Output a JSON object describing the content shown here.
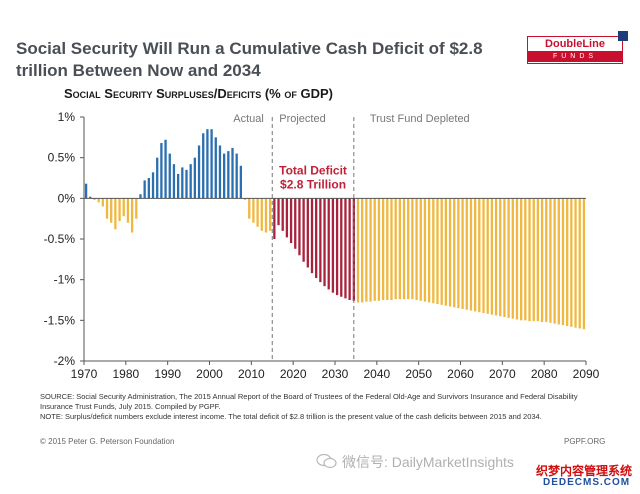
{
  "title": "Social Security Will Run a Cumulative Cash Deficit of $2.8 trillion Between Now and 2034",
  "logo": {
    "top": "DoubleLine",
    "bottom": "FUNDS"
  },
  "subtitle": "Social Security Surpluses/Deficits (% of GDP)",
  "source": "SOURCE: Social Security Administration, The 2015 Annual Report of the Board of Trustees of the Federal Old-Age and Survivors Insurance and Federal Disability Insurance Trust Funds, July 2015. Compiled by PGPF.",
  "note": "NOTE: Surplus/deficit numbers exclude interest income. The total deficit of $2.8 trillion is the present value of the cash deficits between 2015 and 2034.",
  "footer_left": "© 2015 Peter G. Peterson Foundation",
  "footer_right": "PGPF.ORG",
  "watermark": "微信号: DailyMarketInsights",
  "brand_line1": "织梦内容管理系统",
  "brand_line2": "DEDECMS.COM",
  "colors": {
    "surplus": "#2a6fb0",
    "deficit": "#f0b840",
    "projected_deficit": "#a8223d",
    "annotation": "#c0203a"
  },
  "chart_data": {
    "type": "bar",
    "xlim": [
      1970,
      2090
    ],
    "ylim": [
      -2,
      1
    ],
    "yticks": [
      "1%",
      "0.5%",
      "0%",
      "-0.5%",
      "-1%",
      "-1.5%",
      "-2%"
    ],
    "ytick_values": [
      1,
      0.5,
      0,
      -0.5,
      -1,
      -1.5,
      -2
    ],
    "xticks": [
      "1970",
      "1980",
      "1990",
      "2000",
      "2010",
      "2020",
      "2030",
      "2040",
      "2050",
      "2060",
      "2070",
      "2080",
      "2090"
    ],
    "xtick_values": [
      1970,
      1980,
      1990,
      2000,
      2010,
      2020,
      2030,
      2040,
      2050,
      2060,
      2070,
      2080,
      2090
    ],
    "region_labels": [
      "Actual",
      "Projected",
      "Trust Fund Depleted"
    ],
    "dividers": [
      2015,
      2034.5
    ],
    "annotation": [
      "Total Deficit",
      "$2.8 Trillion"
    ],
    "grid": false,
    "years": [
      1970,
      1971,
      1972,
      1973,
      1974,
      1975,
      1976,
      1977,
      1978,
      1979,
      1980,
      1981,
      1982,
      1983,
      1984,
      1985,
      1986,
      1987,
      1988,
      1989,
      1990,
      1991,
      1992,
      1993,
      1994,
      1995,
      1996,
      1997,
      1998,
      1999,
      2000,
      2001,
      2002,
      2003,
      2004,
      2005,
      2006,
      2007,
      2008,
      2009,
      2010,
      2011,
      2012,
      2013,
      2014,
      2015,
      2016,
      2017,
      2018,
      2019,
      2020,
      2021,
      2022,
      2023,
      2024,
      2025,
      2026,
      2027,
      2028,
      2029,
      2030,
      2031,
      2032,
      2033,
      2034,
      2035,
      2036,
      2037,
      2038,
      2039,
      2040,
      2041,
      2042,
      2043,
      2044,
      2045,
      2046,
      2047,
      2048,
      2049,
      2050,
      2051,
      2052,
      2053,
      2054,
      2055,
      2056,
      2057,
      2058,
      2059,
      2060,
      2061,
      2062,
      2063,
      2064,
      2065,
      2066,
      2067,
      2068,
      2069,
      2070,
      2071,
      2072,
      2073,
      2074,
      2075,
      2076,
      2077,
      2078,
      2079,
      2080,
      2081,
      2082,
      2083,
      2084,
      2085,
      2086,
      2087,
      2088,
      2089
    ],
    "values": [
      0.18,
      0.02,
      -0.02,
      -0.05,
      -0.1,
      -0.25,
      -0.3,
      -0.38,
      -0.28,
      -0.22,
      -0.3,
      -0.42,
      -0.25,
      0.05,
      0.22,
      0.25,
      0.32,
      0.5,
      0.68,
      0.72,
      0.55,
      0.42,
      0.3,
      0.38,
      0.35,
      0.42,
      0.5,
      0.65,
      0.8,
      0.85,
      0.85,
      0.75,
      0.65,
      0.55,
      0.58,
      0.62,
      0.55,
      0.4,
      -0.02,
      -0.25,
      -0.3,
      -0.35,
      -0.4,
      -0.42,
      -0.4,
      -0.5,
      -0.33,
      -0.4,
      -0.48,
      -0.55,
      -0.62,
      -0.7,
      -0.78,
      -0.85,
      -0.92,
      -0.98,
      -1.03,
      -1.08,
      -1.12,
      -1.16,
      -1.19,
      -1.21,
      -1.23,
      -1.25,
      -1.26,
      -1.28,
      -1.28,
      -1.27,
      -1.27,
      -1.26,
      -1.26,
      -1.25,
      -1.25,
      -1.25,
      -1.24,
      -1.24,
      -1.24,
      -1.24,
      -1.24,
      -1.25,
      -1.26,
      -1.27,
      -1.28,
      -1.29,
      -1.3,
      -1.31,
      -1.32,
      -1.33,
      -1.34,
      -1.35,
      -1.36,
      -1.37,
      -1.38,
      -1.39,
      -1.4,
      -1.41,
      -1.42,
      -1.43,
      -1.44,
      -1.45,
      -1.46,
      -1.47,
      -1.48,
      -1.49,
      -1.5,
      -1.5,
      -1.51,
      -1.51,
      -1.51,
      -1.52,
      -1.52,
      -1.53,
      -1.54,
      -1.55,
      -1.56,
      -1.57,
      -1.58,
      -1.59,
      -1.6,
      -1.61
    ]
  }
}
